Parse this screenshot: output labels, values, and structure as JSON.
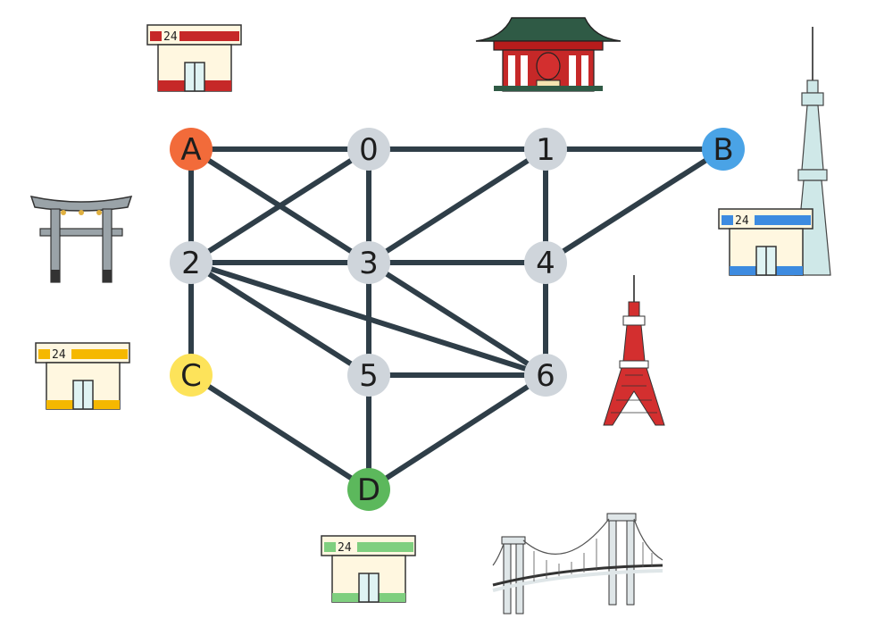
{
  "graph": {
    "nodes": [
      {
        "id": "A",
        "label": "A",
        "color": "#f26b3a"
      },
      {
        "id": "0",
        "label": "0",
        "color": "#cfd5db"
      },
      {
        "id": "1",
        "label": "1",
        "color": "#cfd5db"
      },
      {
        "id": "B",
        "label": "B",
        "color": "#4aa3e6"
      },
      {
        "id": "2",
        "label": "2",
        "color": "#cfd5db"
      },
      {
        "id": "3",
        "label": "3",
        "color": "#cfd5db"
      },
      {
        "id": "4",
        "label": "4",
        "color": "#cfd5db"
      },
      {
        "id": "C",
        "label": "C",
        "color": "#fde35a"
      },
      {
        "id": "5",
        "label": "5",
        "color": "#cfd5db"
      },
      {
        "id": "6",
        "label": "6",
        "color": "#cfd5db"
      },
      {
        "id": "D",
        "label": "D",
        "color": "#5cb85c"
      }
    ],
    "edges": [
      [
        "A",
        "0"
      ],
      [
        "0",
        "1"
      ],
      [
        "1",
        "B"
      ],
      [
        "A",
        "2"
      ],
      [
        "A",
        "3"
      ],
      [
        "0",
        "2"
      ],
      [
        "0",
        "3"
      ],
      [
        "1",
        "3"
      ],
      [
        "1",
        "4"
      ],
      [
        "B",
        "4"
      ],
      [
        "2",
        "3"
      ],
      [
        "3",
        "4"
      ],
      [
        "2",
        "C"
      ],
      [
        "2",
        "5"
      ],
      [
        "2",
        "6"
      ],
      [
        "3",
        "5"
      ],
      [
        "3",
        "6"
      ],
      [
        "4",
        "6"
      ],
      [
        "5",
        "6"
      ],
      [
        "C",
        "D"
      ],
      [
        "5",
        "D"
      ],
      [
        "6",
        "D"
      ]
    ],
    "edge_color": "#2f3e48"
  },
  "landmarks": {
    "store_red": {
      "sign": "24",
      "color": "#c62828"
    },
    "store_blue": {
      "sign": "24",
      "color": "#3d8be0"
    },
    "store_yellow": {
      "sign": "24",
      "color": "#f5b800"
    },
    "store_green": {
      "sign": "24",
      "color": "#7fcf7f"
    },
    "icons": [
      "convenience-store-icon",
      "temple-gate-icon",
      "torii-gate-icon",
      "skytree-tower-icon",
      "tokyo-tower-icon",
      "suspension-bridge-icon"
    ]
  }
}
